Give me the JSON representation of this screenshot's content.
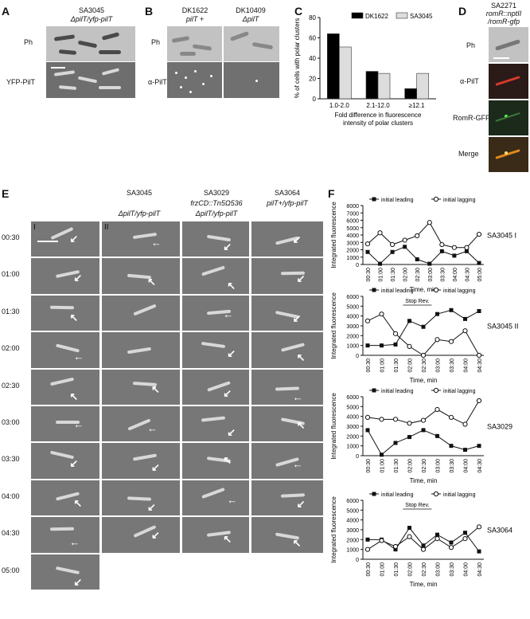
{
  "panels": {
    "A": {
      "letter": "A",
      "strain": "SA3045",
      "genotype": "ΔpilT/yfp-pilT",
      "row1": "Ph",
      "row2": "YFP-PilT"
    },
    "B": {
      "letter": "B",
      "strain1": "DK1622",
      "geno1": "pilT +",
      "strain2": "DK10409",
      "geno2": "ΔpilT",
      "row1": "Ph",
      "row2": "α-PilT"
    },
    "C": {
      "letter": "C"
    },
    "D": {
      "letter": "D",
      "strain": "SA2271",
      "geno1": "romR::nptII",
      "geno2": "/romR-gfp",
      "rows": [
        "Ph",
        "α-PilT",
        "RomR-GFP",
        "Merge"
      ]
    },
    "E": {
      "letter": "E",
      "col1_strain": "SA3045",
      "col1_geno": "ΔpilT/yfp-pilT",
      "col3_strain": "SA3029",
      "col3_geno1": "frzCD::Tn5Ω536",
      "col3_geno2": "ΔpilT/yfp-pilT",
      "col4_strain": "SA3064",
      "col4_geno": "pilT+/yfp-pilT",
      "tile_I": "I",
      "tile_II": "II",
      "times": [
        "00:30",
        "01:00",
        "01:30",
        "02:00",
        "02:30",
        "03:00",
        "03:30",
        "04:00",
        "04:30",
        "05:00"
      ]
    },
    "F": {
      "letter": "F"
    }
  },
  "chart_data": [
    {
      "type": "bar",
      "panel": "C",
      "categories": [
        "1.0-2.0",
        "2.1-12.0",
        "≥12.1"
      ],
      "series": [
        {
          "name": "DK1622",
          "color": "#000000",
          "values": [
            64,
            27,
            10
          ]
        },
        {
          "name": "SA3045",
          "color": "#dddddd",
          "values": [
            51,
            25,
            25
          ]
        }
      ],
      "xlabel": "Fold difference in fluorescence intensity of polar clusters",
      "ylabel": "% of cells with polar clusters",
      "ylim": [
        0,
        80
      ],
      "yticks": [
        0,
        20,
        40,
        60,
        80
      ],
      "legend": "top-right"
    },
    {
      "type": "line",
      "panel": "F-1",
      "label": "SA3045 I",
      "x": [
        "00:30",
        "01:00",
        "01:30",
        "02:00",
        "02:30",
        "03:00",
        "03:30",
        "04:00",
        "04:30",
        "05:00"
      ],
      "series": [
        {
          "name": "initial leading",
          "marker": "filled-square",
          "values": [
            1700,
            100,
            1700,
            2400,
            700,
            100,
            1800,
            1200,
            1800,
            200
          ]
        },
        {
          "name": "initial lagging",
          "marker": "open-circle",
          "values": [
            2800,
            4300,
            2700,
            3300,
            3900,
            5700,
            2700,
            2300,
            2300,
            4100
          ]
        }
      ],
      "ylabel": "Integrated fluorescence",
      "xlabel": "Time, min",
      "ylim": [
        0,
        8000
      ],
      "yticks": [
        0,
        1000,
        2000,
        3000,
        4000,
        5000,
        6000,
        7000,
        8000
      ],
      "annotation": ""
    },
    {
      "type": "line",
      "panel": "F-2",
      "label": "SA3045 II",
      "x": [
        "00:30",
        "01:00",
        "01:30",
        "02:00",
        "02:30",
        "03:00",
        "03:30",
        "04:00",
        "04:30"
      ],
      "series": [
        {
          "name": "initial leading",
          "marker": "filled-square",
          "values": [
            1000,
            1000,
            1100,
            3500,
            2900,
            4200,
            4600,
            3700,
            4500
          ]
        },
        {
          "name": "initial lagging",
          "marker": "open-circle",
          "values": [
            3500,
            4200,
            2200,
            900,
            0,
            1600,
            1400,
            2500,
            0
          ]
        }
      ],
      "ylabel": "Integrated fluorescence",
      "xlabel": "Time, min",
      "ylim": [
        0,
        6000
      ],
      "yticks": [
        0,
        1000,
        2000,
        3000,
        4000,
        5000,
        6000
      ],
      "annotation": "Stop Rev."
    },
    {
      "type": "line",
      "panel": "F-3",
      "label": "SA3029",
      "x": [
        "00:30",
        "01:00",
        "01:30",
        "02:00",
        "02:30",
        "03:00",
        "03:30",
        "04:00",
        "04:30"
      ],
      "series": [
        {
          "name": "initial leading",
          "marker": "filled-square",
          "values": [
            2600,
            100,
            1300,
            1900,
            2600,
            2000,
            1000,
            600,
            1000
          ]
        },
        {
          "name": "initial lagging",
          "marker": "open-circle",
          "values": [
            3900,
            3700,
            3700,
            3300,
            3600,
            4700,
            3900,
            3200,
            5600
          ]
        }
      ],
      "ylabel": "Integrated fluorescence",
      "xlabel": "Time, min",
      "ylim": [
        0,
        6000
      ],
      "yticks": [
        0,
        1000,
        2000,
        3000,
        4000,
        5000,
        6000
      ],
      "annotation": ""
    },
    {
      "type": "line",
      "panel": "F-4",
      "label": "SA3064",
      "x": [
        "00:30",
        "01:00",
        "01:30",
        "02:00",
        "02:30",
        "03:00",
        "03:30",
        "04:00",
        "04:30"
      ],
      "series": [
        {
          "name": "initial leading",
          "marker": "filled-square",
          "values": [
            2000,
            2000,
            1000,
            3200,
            1400,
            2500,
            1700,
            2700,
            800
          ]
        },
        {
          "name": "initial lagging",
          "marker": "open-circle",
          "values": [
            1000,
            1900,
            1300,
            2300,
            1000,
            2100,
            1200,
            2100,
            3300
          ]
        }
      ],
      "ylabel": "Integrated fluorescence",
      "xlabel": "Time, min",
      "ylim": [
        0,
        6000
      ],
      "yticks": [
        0,
        1000,
        2000,
        3000,
        4000,
        5000,
        6000
      ],
      "annotation": "Stop   Rev."
    }
  ]
}
